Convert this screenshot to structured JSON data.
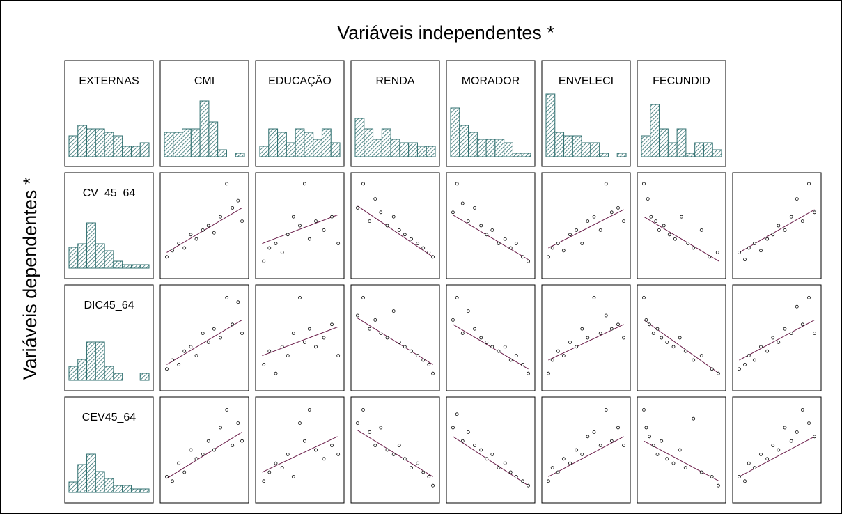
{
  "chart_data": {
    "type": "scatter_matrix",
    "title": "Variáveis independentes *",
    "y_label": "Variáveis dependentes *",
    "bar_color": "#2f6f6f",
    "point_color": "#000000",
    "line_color": "#6b1d4a",
    "hist_ylim": [
      0,
      20
    ],
    "xlim": [
      0,
      100
    ],
    "ylim": [
      0,
      100
    ],
    "independent": [
      {
        "name": "EXTERNAS",
        "histogram": [
          6,
          9,
          8,
          8,
          7,
          6,
          3,
          3,
          4
        ]
      },
      {
        "name": "CMI",
        "histogram": [
          7,
          7,
          8,
          8,
          16,
          10,
          2,
          0,
          1
        ]
      },
      {
        "name": "EDUCAÇÃO",
        "histogram": [
          3,
          8,
          7,
          4,
          8,
          7,
          5,
          8,
          4
        ]
      },
      {
        "name": "RENDA",
        "histogram": [
          11,
          8,
          5,
          8,
          5,
          4,
          4,
          3,
          3
        ]
      },
      {
        "name": "MORADOR",
        "histogram": [
          14,
          9,
          7,
          5,
          5,
          5,
          4,
          1,
          1
        ]
      },
      {
        "name": "ENVELECI",
        "histogram": [
          18,
          7,
          6,
          6,
          4,
          4,
          1,
          0,
          1
        ]
      },
      {
        "name": "FECUNDID",
        "histogram": [
          6,
          15,
          8,
          4,
          8,
          1,
          4,
          4,
          2
        ]
      }
    ],
    "dependent": [
      {
        "name": "CV_45_64",
        "histogram": [
          6,
          7,
          13,
          7,
          5,
          2,
          1,
          1,
          1
        ]
      },
      {
        "name": "DIC45_64",
        "histogram": [
          4,
          6,
          11,
          11,
          4,
          2,
          0,
          0,
          2
        ]
      },
      {
        "name": "CEV45_64",
        "histogram": [
          3,
          8,
          11,
          6,
          4,
          2,
          2,
          1,
          1
        ]
      }
    ],
    "panels": [
      [
        {
          "x": [
            3,
            10,
            18,
            25,
            33,
            40,
            48,
            55,
            62,
            70,
            78,
            85,
            92,
            97
          ],
          "y": [
            15,
            22,
            30,
            25,
            40,
            35,
            45,
            50,
            42,
            60,
            97,
            70,
            78,
            55
          ],
          "fit_x": [
            3,
            97
          ],
          "fit_y": [
            20,
            70
          ]
        },
        {
          "x": [
            5,
            12,
            20,
            28,
            35,
            42,
            50,
            56,
            62,
            70,
            80,
            90,
            98
          ],
          "y": [
            10,
            25,
            30,
            20,
            40,
            60,
            50,
            97,
            35,
            55,
            45,
            60,
            30
          ],
          "fit_x": [
            3,
            97
          ],
          "fit_y": [
            30,
            62
          ]
        },
        {
          "x": [
            3,
            10,
            18,
            25,
            32,
            40,
            48,
            55,
            62,
            70,
            78,
            85,
            92,
            97
          ],
          "y": [
            70,
            97,
            55,
            80,
            65,
            50,
            60,
            45,
            40,
            35,
            30,
            25,
            20,
            15
          ],
          "fit_x": [
            3,
            97
          ],
          "fit_y": [
            72,
            15
          ]
        },
        {
          "x": [
            3,
            8,
            15,
            22,
            30,
            38,
            45,
            52,
            60,
            68,
            75,
            82,
            90,
            97
          ],
          "y": [
            65,
            97,
            75,
            55,
            70,
            50,
            40,
            45,
            30,
            35,
            25,
            30,
            15,
            10
          ],
          "fit_x": [
            3,
            97
          ],
          "fit_y": [
            62,
            12
          ]
        },
        {
          "x": [
            3,
            8,
            15,
            22,
            30,
            38,
            45,
            52,
            60,
            68,
            75,
            82,
            90,
            97
          ],
          "y": [
            15,
            25,
            30,
            22,
            40,
            45,
            30,
            55,
            60,
            45,
            97,
            65,
            70,
            55
          ],
          "fit_x": [
            3,
            97
          ],
          "fit_y": [
            25,
            68
          ]
        },
        {
          "x": [
            3,
            8,
            12,
            18,
            22,
            28,
            35,
            42,
            50,
            58,
            65,
            75,
            85,
            95
          ],
          "y": [
            97,
            80,
            60,
            55,
            45,
            50,
            40,
            35,
            60,
            30,
            25,
            45,
            15,
            20
          ],
          "fit_x": [
            3,
            97
          ],
          "fit_y": [
            60,
            10
          ]
        },
        {
          "x": [
            3,
            10,
            15,
            22,
            30,
            38,
            45,
            52,
            60,
            68,
            75,
            82,
            90,
            97
          ],
          "y": [
            20,
            12,
            25,
            30,
            22,
            35,
            40,
            50,
            45,
            60,
            80,
            55,
            97,
            65
          ],
          "fit_x": [
            3,
            97
          ],
          "fit_y": [
            20,
            68
          ]
        }
      ],
      [
        {
          "x": [
            3,
            10,
            18,
            25,
            33,
            40,
            48,
            55,
            62,
            70,
            78,
            85,
            92,
            97
          ],
          "y": [
            15,
            25,
            20,
            35,
            40,
            30,
            55,
            45,
            60,
            50,
            95,
            65,
            90,
            55
          ],
          "fit_x": [
            3,
            97
          ],
          "fit_y": [
            20,
            70
          ]
        },
        {
          "x": [
            5,
            12,
            20,
            28,
            35,
            42,
            50,
            56,
            62,
            70,
            80,
            90,
            98
          ],
          "y": [
            20,
            35,
            10,
            40,
            30,
            55,
            95,
            45,
            60,
            40,
            50,
            65,
            30
          ],
          "fit_x": [
            3,
            97
          ],
          "fit_y": [
            30,
            62
          ]
        },
        {
          "x": [
            3,
            10,
            18,
            25,
            32,
            40,
            48,
            55,
            62,
            70,
            78,
            85,
            92,
            97
          ],
          "y": [
            75,
            95,
            60,
            70,
            55,
            50,
            80,
            45,
            40,
            35,
            30,
            25,
            20,
            10
          ],
          "fit_x": [
            3,
            97
          ],
          "fit_y": [
            72,
            20
          ]
        },
        {
          "x": [
            3,
            8,
            15,
            22,
            30,
            38,
            45,
            52,
            60,
            68,
            75,
            82,
            90,
            97
          ],
          "y": [
            70,
            95,
            55,
            80,
            60,
            50,
            45,
            40,
            35,
            40,
            25,
            30,
            20,
            10
          ],
          "fit_x": [
            3,
            97
          ],
          "fit_y": [
            65,
            15
          ]
        },
        {
          "x": [
            3,
            8,
            15,
            22,
            30,
            38,
            45,
            52,
            60,
            68,
            75,
            82,
            90,
            97
          ],
          "y": [
            10,
            25,
            35,
            30,
            45,
            40,
            60,
            50,
            95,
            55,
            75,
            60,
            65,
            50
          ],
          "fit_x": [
            3,
            97
          ],
          "fit_y": [
            25,
            65
          ]
        },
        {
          "x": [
            3,
            6,
            10,
            15,
            20,
            25,
            32,
            40,
            48,
            55,
            65,
            75,
            88,
            96
          ],
          "y": [
            95,
            70,
            65,
            55,
            60,
            50,
            45,
            40,
            50,
            35,
            25,
            30,
            15,
            10
          ],
          "fit_x": [
            3,
            97
          ],
          "fit_y": [
            70,
            10
          ]
        },
        {
          "x": [
            3,
            10,
            15,
            22,
            30,
            38,
            45,
            52,
            60,
            68,
            75,
            82,
            90,
            97
          ],
          "y": [
            15,
            20,
            30,
            25,
            40,
            35,
            50,
            45,
            60,
            55,
            85,
            65,
            95,
            55
          ],
          "fit_x": [
            3,
            97
          ],
          "fit_y": [
            25,
            70
          ]
        }
      ],
      [
        {
          "x": [
            3,
            10,
            18,
            25,
            33,
            40,
            48,
            55,
            62,
            70,
            78,
            85,
            92,
            97
          ],
          "y": [
            20,
            15,
            35,
            25,
            50,
            40,
            45,
            60,
            50,
            75,
            95,
            55,
            80,
            60
          ],
          "fit_x": [
            3,
            97
          ],
          "fit_y": [
            18,
            70
          ]
        },
        {
          "x": [
            5,
            12,
            20,
            28,
            35,
            42,
            50,
            56,
            62,
            70,
            80,
            90,
            98
          ],
          "y": [
            15,
            25,
            35,
            30,
            45,
            20,
            80,
            60,
            95,
            50,
            40,
            55,
            45
          ],
          "fit_x": [
            3,
            97
          ],
          "fit_y": [
            25,
            65
          ]
        },
        {
          "x": [
            3,
            10,
            18,
            25,
            32,
            40,
            48,
            55,
            62,
            70,
            78,
            85,
            92,
            97
          ],
          "y": [
            80,
            95,
            70,
            55,
            75,
            50,
            45,
            55,
            40,
            30,
            35,
            25,
            20,
            10
          ],
          "fit_x": [
            3,
            97
          ],
          "fit_y": [
            72,
            20
          ]
        },
        {
          "x": [
            3,
            8,
            15,
            22,
            30,
            38,
            45,
            52,
            60,
            68,
            75,
            82,
            90,
            97
          ],
          "y": [
            75,
            90,
            60,
            70,
            55,
            50,
            40,
            45,
            30,
            35,
            25,
            20,
            15,
            10
          ],
          "fit_x": [
            3,
            97
          ],
          "fit_y": [
            65,
            10
          ]
        },
        {
          "x": [
            3,
            8,
            15,
            22,
            30,
            38,
            45,
            52,
            60,
            68,
            75,
            82,
            90,
            97
          ],
          "y": [
            15,
            30,
            25,
            40,
            35,
            50,
            45,
            65,
            70,
            55,
            95,
            60,
            75,
            55
          ],
          "fit_x": [
            3,
            97
          ],
          "fit_y": [
            20,
            65
          ]
        },
        {
          "x": [
            3,
            6,
            10,
            15,
            20,
            25,
            32,
            40,
            48,
            55,
            65,
            75,
            88,
            96
          ],
          "y": [
            95,
            75,
            65,
            55,
            45,
            60,
            40,
            35,
            50,
            30,
            85,
            25,
            20,
            10
          ],
          "fit_x": [
            3,
            97
          ],
          "fit_y": [
            60,
            15
          ]
        },
        {
          "x": [
            3,
            10,
            15,
            22,
            30,
            38,
            45,
            52,
            60,
            68,
            75,
            82,
            90,
            97
          ],
          "y": [
            20,
            15,
            35,
            30,
            45,
            40,
            55,
            50,
            75,
            60,
            70,
            95,
            80,
            65
          ],
          "fit_x": [
            3,
            97
          ],
          "fit_y": [
            20,
            65
          ]
        }
      ]
    ]
  }
}
